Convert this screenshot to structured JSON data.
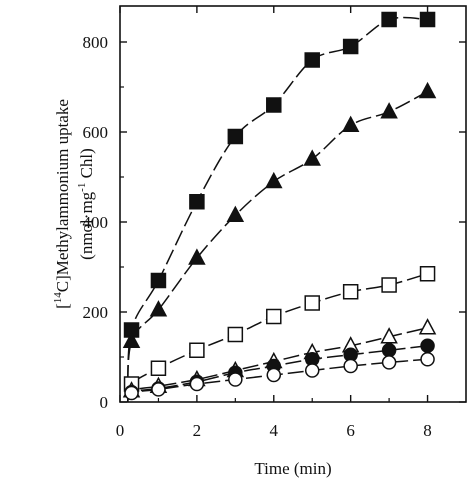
{
  "chart_data": {
    "type": "line",
    "xlabel": "Time (min)",
    "ylabel": {
      "line1_pre": "[",
      "line1_sup": "14",
      "line1_post": "C]Methylammonium uptake",
      "line2_pre": "(nmol·mg",
      "line2_sup": "-1",
      "line2_post": " Chl)"
    },
    "xlim": [
      0,
      9
    ],
    "ylim": [
      0,
      880
    ],
    "xticks": [
      0,
      2,
      4,
      6,
      8
    ],
    "yticks": [
      0,
      200,
      400,
      600,
      800
    ],
    "grid": false,
    "legend": "none",
    "series": [
      {
        "marker": "filled-square",
        "x": [
          0.3,
          1,
          2,
          3,
          4,
          5,
          6,
          7,
          8
        ],
        "y": [
          160,
          270,
          445,
          590,
          660,
          760,
          790,
          850,
          850
        ]
      },
      {
        "marker": "filled-triangle",
        "x": [
          0.3,
          1,
          2,
          3,
          4,
          5,
          6,
          7,
          8
        ],
        "y": [
          135,
          205,
          320,
          415,
          490,
          540,
          615,
          645,
          690
        ]
      },
      {
        "marker": "open-square",
        "x": [
          0.3,
          1,
          2,
          3,
          4,
          5,
          6,
          7,
          8
        ],
        "y": [
          40,
          75,
          115,
          150,
          190,
          220,
          245,
          260,
          285
        ]
      },
      {
        "marker": "open-triangle",
        "x": [
          0.3,
          1,
          2,
          3,
          4,
          5,
          6,
          7,
          8
        ],
        "y": [
          25,
          35,
          50,
          70,
          90,
          110,
          125,
          145,
          165
        ]
      },
      {
        "marker": "filled-circle",
        "x": [
          0.3,
          1,
          2,
          3,
          4,
          5,
          6,
          7,
          8
        ],
        "y": [
          22,
          30,
          45,
          65,
          80,
          95,
          105,
          115,
          125
        ]
      },
      {
        "marker": "open-circle",
        "x": [
          0.3,
          1,
          2,
          3,
          4,
          5,
          6,
          7,
          8
        ],
        "y": [
          20,
          28,
          40,
          50,
          60,
          70,
          80,
          88,
          95
        ]
      }
    ]
  }
}
